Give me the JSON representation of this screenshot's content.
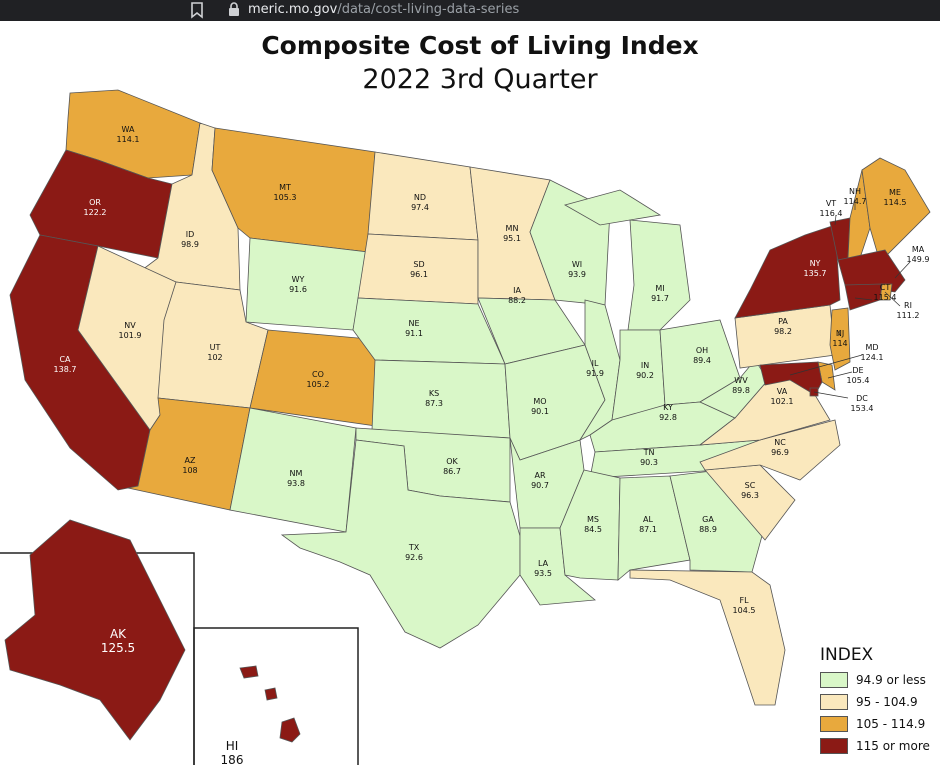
{
  "browser": {
    "url_host": "meric.mo.gov",
    "url_path": "/data/cost-living-data-series"
  },
  "title": "Composite Cost of Living Index",
  "subtitle": "2022 3rd Quarter",
  "colors": {
    "low": "#d9f7c8",
    "mid": "#fae8bd",
    "high": "#e8a93d",
    "top": "#8b1a15",
    "border": "#555555"
  },
  "legend": {
    "title": "INDEX",
    "items": [
      {
        "label": "94.9 or less",
        "color": "#d9f7c8"
      },
      {
        "label": "95 - 104.9",
        "color": "#fae8bd"
      },
      {
        "label": "105 - 114.9",
        "color": "#e8a93d"
      },
      {
        "label": "115 or more",
        "color": "#8b1a15"
      }
    ]
  },
  "states": [
    {
      "code": "WA",
      "value": "114.1",
      "cls": "high"
    },
    {
      "code": "OR",
      "value": "122.2",
      "cls": "top"
    },
    {
      "code": "CA",
      "value": "138.7",
      "cls": "top"
    },
    {
      "code": "ID",
      "value": "98.9",
      "cls": "mid"
    },
    {
      "code": "NV",
      "value": "101.9",
      "cls": "mid"
    },
    {
      "code": "MT",
      "value": "105.3",
      "cls": "high"
    },
    {
      "code": "WY",
      "value": "91.6",
      "cls": "low"
    },
    {
      "code": "UT",
      "value": "102",
      "cls": "mid"
    },
    {
      "code": "CO",
      "value": "105.2",
      "cls": "high"
    },
    {
      "code": "AZ",
      "value": "108",
      "cls": "high"
    },
    {
      "code": "NM",
      "value": "93.8",
      "cls": "low"
    },
    {
      "code": "ND",
      "value": "97.4",
      "cls": "mid"
    },
    {
      "code": "SD",
      "value": "96.1",
      "cls": "mid"
    },
    {
      "code": "NE",
      "value": "91.1",
      "cls": "low"
    },
    {
      "code": "KS",
      "value": "87.3",
      "cls": "low"
    },
    {
      "code": "OK",
      "value": "86.7",
      "cls": "low"
    },
    {
      "code": "TX",
      "value": "92.6",
      "cls": "low"
    },
    {
      "code": "MN",
      "value": "95.1",
      "cls": "mid"
    },
    {
      "code": "IA",
      "value": "88.2",
      "cls": "low"
    },
    {
      "code": "MO",
      "value": "90.1",
      "cls": "low"
    },
    {
      "code": "AR",
      "value": "90.7",
      "cls": "low"
    },
    {
      "code": "LA",
      "value": "93.5",
      "cls": "low"
    },
    {
      "code": "WI",
      "value": "93.9",
      "cls": "low"
    },
    {
      "code": "IL",
      "value": "91.9",
      "cls": "low"
    },
    {
      "code": "MI",
      "value": "91.7",
      "cls": "low"
    },
    {
      "code": "IN",
      "value": "90.2",
      "cls": "low"
    },
    {
      "code": "OH",
      "value": "89.4",
      "cls": "low"
    },
    {
      "code": "KY",
      "value": "92.8",
      "cls": "low"
    },
    {
      "code": "TN",
      "value": "90.3",
      "cls": "low"
    },
    {
      "code": "MS",
      "value": "84.5",
      "cls": "low"
    },
    {
      "code": "AL",
      "value": "87.1",
      "cls": "low"
    },
    {
      "code": "GA",
      "value": "88.9",
      "cls": "low"
    },
    {
      "code": "FL",
      "value": "104.5",
      "cls": "mid"
    },
    {
      "code": "SC",
      "value": "96.3",
      "cls": "mid"
    },
    {
      "code": "NC",
      "value": "96.9",
      "cls": "mid"
    },
    {
      "code": "VA",
      "value": "102.1",
      "cls": "mid"
    },
    {
      "code": "WV",
      "value": "89.8",
      "cls": "low"
    },
    {
      "code": "PA",
      "value": "98.2",
      "cls": "mid"
    },
    {
      "code": "NY",
      "value": "135.7",
      "cls": "top"
    },
    {
      "code": "VT",
      "value": "116.4",
      "cls": "top"
    },
    {
      "code": "NH",
      "value": "114.7",
      "cls": "high"
    },
    {
      "code": "ME",
      "value": "114.5",
      "cls": "high"
    },
    {
      "code": "MA",
      "value": "149.9",
      "cls": "top"
    },
    {
      "code": "RI",
      "value": "111.2",
      "cls": "high"
    },
    {
      "code": "CT",
      "value": "115.4",
      "cls": "top"
    },
    {
      "code": "NJ",
      "value": "114",
      "cls": "high"
    },
    {
      "code": "DE",
      "value": "105.4",
      "cls": "high"
    },
    {
      "code": "MD",
      "value": "124.1",
      "cls": "top"
    },
    {
      "code": "DC",
      "value": "153.4",
      "cls": "top"
    },
    {
      "code": "AK",
      "value": "125.5",
      "cls": "top"
    },
    {
      "code": "HI",
      "value": "186",
      "cls": "top"
    }
  ]
}
